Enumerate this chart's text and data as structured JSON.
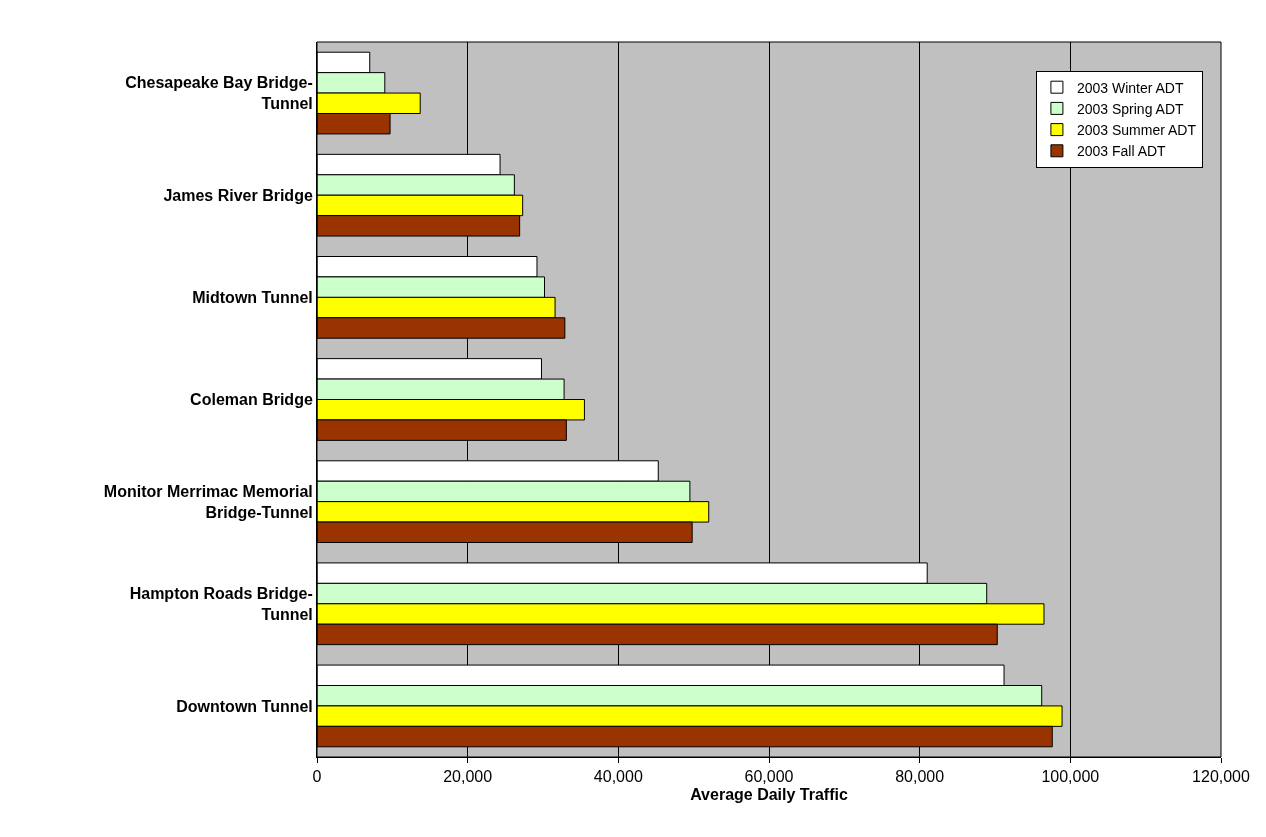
{
  "chart_data": {
    "type": "bar",
    "orientation": "horizontal",
    "xlabel": "Average Daily Traffic",
    "categories": [
      "Chesapeake Bay Bridge-Tunnel",
      "James River Bridge",
      "Midtown Tunnel",
      "Coleman Bridge",
      "Monitor Merrimac Memorial Bridge-Tunnel",
      "Hampton Roads Bridge-Tunnel",
      "Downtown Tunnel"
    ],
    "series": [
      {
        "name": "2003 Winter ADT",
        "color": "#ffffff",
        "values": [
          7000,
          24300,
          29200,
          29800,
          45300,
          81000,
          91200
        ]
      },
      {
        "name": "2003 Spring ADT",
        "color": "#ccffcc",
        "values": [
          9000,
          26200,
          30200,
          32800,
          49500,
          88900,
          96200
        ]
      },
      {
        "name": "2003 Summer ADT",
        "color": "#ffff00",
        "values": [
          13700,
          27300,
          31600,
          35500,
          52000,
          96500,
          98900
        ]
      },
      {
        "name": "2003 Fall ADT",
        "color": "#993300",
        "values": [
          9700,
          26900,
          32900,
          33100,
          49800,
          90300,
          97600
        ]
      }
    ],
    "xlim": [
      0,
      120000
    ],
    "xticks": [
      0,
      {
        "value": 20000,
        "label": "20,000"
      },
      {
        "value": 40000,
        "label": "40,000"
      },
      {
        "value": 60000,
        "label": "60,000"
      },
      {
        "value": 80000,
        "label": "80,000"
      },
      {
        "value": 100000,
        "label": "100,000"
      },
      {
        "value": 120000,
        "label": "120,000"
      }
    ],
    "grid": "x",
    "legend": "top right"
  }
}
